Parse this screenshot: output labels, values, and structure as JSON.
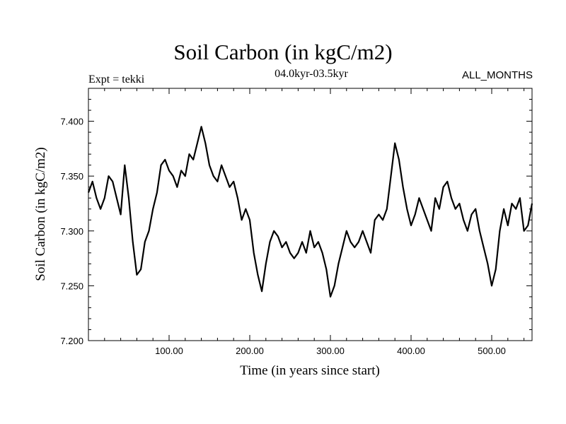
{
  "chart_data": {
    "type": "line",
    "title": "Soil Carbon (in kgC/m2)",
    "subtitle": "04.0kyr-03.5kyr",
    "left_note": "Expt = tekki",
    "right_note": "ALL_MONTHS",
    "xlabel": "Time (in years since start)",
    "ylabel": "Soil Carbon (in kgC/m2)",
    "xlim": [
      0,
      550
    ],
    "ylim": [
      7.2,
      7.43
    ],
    "xticks": [
      100,
      200,
      300,
      400,
      500
    ],
    "xtick_labels": [
      "100.00",
      "200.00",
      "300.00",
      "400.00",
      "500.00"
    ],
    "yticks": [
      7.2,
      7.25,
      7.3,
      7.35,
      7.4
    ],
    "ytick_labels": [
      "7.200",
      "7.250",
      "7.300",
      "7.350",
      "7.400"
    ],
    "grid": false,
    "series": [
      {
        "color": "#000000",
        "x": [
          0,
          5,
          10,
          15,
          20,
          25,
          30,
          35,
          40,
          45,
          50,
          55,
          60,
          65,
          70,
          75,
          80,
          85,
          90,
          95,
          100,
          105,
          110,
          115,
          120,
          125,
          130,
          135,
          140,
          145,
          150,
          155,
          160,
          165,
          170,
          175,
          180,
          185,
          190,
          195,
          200,
          205,
          210,
          215,
          220,
          225,
          230,
          235,
          240,
          245,
          250,
          255,
          260,
          265,
          270,
          275,
          280,
          285,
          290,
          295,
          300,
          305,
          310,
          315,
          320,
          325,
          330,
          335,
          340,
          345,
          350,
          355,
          360,
          365,
          370,
          375,
          380,
          385,
          390,
          395,
          400,
          405,
          410,
          415,
          420,
          425,
          430,
          435,
          440,
          445,
          450,
          455,
          460,
          465,
          470,
          475,
          480,
          485,
          490,
          495,
          500,
          505,
          510,
          515,
          520,
          525,
          530,
          535,
          540,
          545,
          550
        ],
        "y": [
          7.335,
          7.345,
          7.33,
          7.32,
          7.33,
          7.35,
          7.345,
          7.33,
          7.315,
          7.36,
          7.33,
          7.29,
          7.26,
          7.265,
          7.29,
          7.3,
          7.32,
          7.335,
          7.36,
          7.365,
          7.355,
          7.35,
          7.34,
          7.355,
          7.35,
          7.37,
          7.365,
          7.38,
          7.395,
          7.38,
          7.36,
          7.35,
          7.345,
          7.36,
          7.35,
          7.34,
          7.345,
          7.33,
          7.31,
          7.32,
          7.31,
          7.28,
          7.26,
          7.245,
          7.27,
          7.29,
          7.3,
          7.295,
          7.285,
          7.29,
          7.28,
          7.275,
          7.28,
          7.29,
          7.28,
          7.3,
          7.285,
          7.29,
          7.28,
          7.265,
          7.24,
          7.25,
          7.27,
          7.285,
          7.3,
          7.29,
          7.285,
          7.29,
          7.3,
          7.29,
          7.28,
          7.31,
          7.315,
          7.31,
          7.32,
          7.35,
          7.38,
          7.365,
          7.34,
          7.32,
          7.305,
          7.315,
          7.33,
          7.32,
          7.31,
          7.3,
          7.33,
          7.32,
          7.34,
          7.345,
          7.33,
          7.32,
          7.325,
          7.31,
          7.3,
          7.315,
          7.32,
          7.3,
          7.285,
          7.27,
          7.25,
          7.265,
          7.3,
          7.32,
          7.305,
          7.325,
          7.32,
          7.33,
          7.3,
          7.305,
          7.325
        ]
      }
    ]
  }
}
